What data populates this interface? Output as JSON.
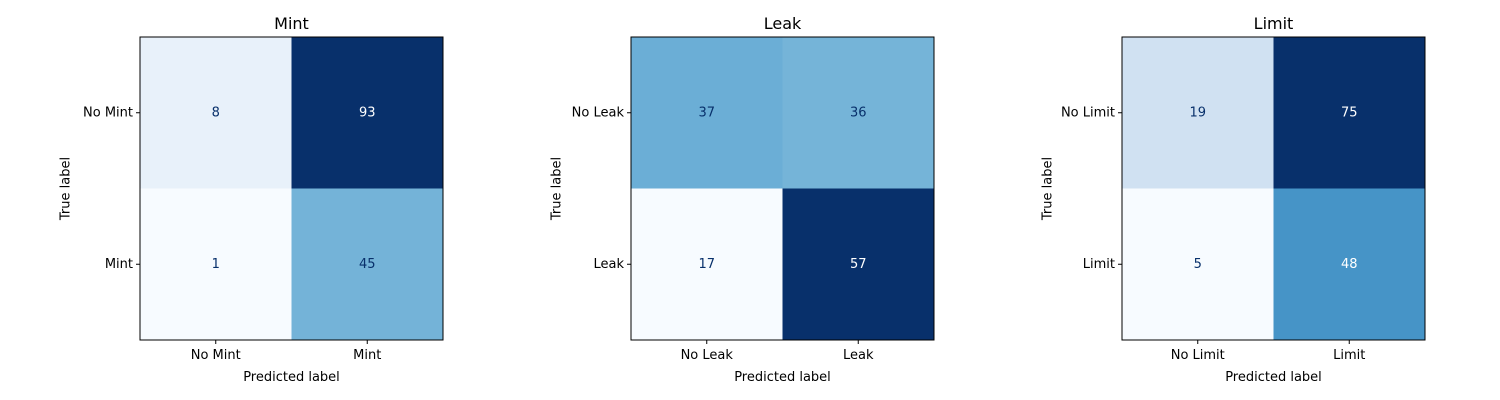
{
  "chart_data": [
    {
      "type": "heatmap",
      "title": "Mint",
      "xlabel": "Predicted label",
      "ylabel": "True label",
      "x_categories": [
        "No Mint",
        "Mint"
      ],
      "y_categories": [
        "No Mint",
        "Mint"
      ],
      "values": [
        [
          8,
          93
        ],
        [
          1,
          45
        ]
      ],
      "colormap": "Blues",
      "text_colors": {
        "light": "#ffffff",
        "dark": "#08306b"
      }
    },
    {
      "type": "heatmap",
      "title": "Leak",
      "xlabel": "Predicted label",
      "ylabel": "True label",
      "x_categories": [
        "No Leak",
        "Leak"
      ],
      "y_categories": [
        "No Leak",
        "Leak"
      ],
      "values": [
        [
          37,
          36
        ],
        [
          17,
          57
        ]
      ],
      "colormap": "Blues",
      "text_colors": {
        "light": "#ffffff",
        "dark": "#08306b"
      }
    },
    {
      "type": "heatmap",
      "title": "Limit",
      "xlabel": "Predicted label",
      "ylabel": "True label",
      "x_categories": [
        "No Limit",
        "Limit"
      ],
      "y_categories": [
        "No Limit",
        "Limit"
      ],
      "values": [
        [
          19,
          75
        ],
        [
          5,
          48
        ]
      ],
      "colormap": "Blues",
      "text_colors": {
        "light": "#ffffff",
        "dark": "#08306b"
      }
    }
  ]
}
